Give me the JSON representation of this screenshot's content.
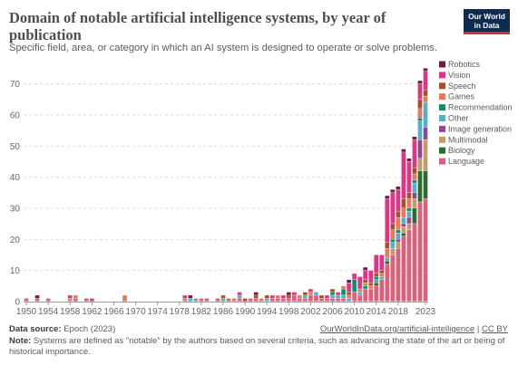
{
  "header": {
    "title": "Domain of notable artificial intelligence systems, by year of publication",
    "subtitle": "Specific field, area, or category in which an AI system is designed to operate or solve problems.",
    "logo_line1": "Our World",
    "logo_line2": "in Data"
  },
  "footer": {
    "source_label": "Data source:",
    "source_text": "Epoch (2023)",
    "url": "OurWorldInData.org/artificial-intelligence",
    "separator": "|",
    "license": "CC BY",
    "note_label": "Note:",
    "note_text": "Systems are defined as \"notable\" by the authors based on several criteria, such as advancing the state of the art or being of historical importance."
  },
  "chart_data": {
    "type": "bar",
    "stacked": true,
    "x_start": 1950,
    "x_end": 2023,
    "xticks": [
      1950,
      1954,
      1958,
      1962,
      1966,
      1970,
      1974,
      1978,
      1982,
      1986,
      1990,
      1994,
      1998,
      2002,
      2006,
      2010,
      2014,
      2018,
      2023
    ],
    "yticks": [
      0,
      10,
      20,
      30,
      40,
      50,
      60,
      70
    ],
    "ylim": [
      0,
      76
    ],
    "grid": "horizontal dashed",
    "legend_position": "right",
    "series": [
      {
        "name": "Language",
        "color": "#d6637d",
        "points": [
          [
            1950,
            1
          ],
          [
            1952,
            1
          ],
          [
            1954,
            1
          ],
          [
            1959,
            1
          ],
          [
            1961,
            1
          ],
          [
            1982,
            1
          ],
          [
            1983,
            1
          ],
          [
            1985,
            1
          ],
          [
            1987,
            1
          ],
          [
            1989,
            1
          ],
          [
            1991,
            1
          ],
          [
            1992,
            1
          ],
          [
            1995,
            1
          ],
          [
            1996,
            1
          ],
          [
            1997,
            1
          ],
          [
            1998,
            1
          ],
          [
            1999,
            2
          ],
          [
            2000,
            1
          ],
          [
            2001,
            1
          ],
          [
            2002,
            2
          ],
          [
            2003,
            2
          ],
          [
            2004,
            1
          ],
          [
            2005,
            1
          ],
          [
            2006,
            1
          ],
          [
            2007,
            1
          ],
          [
            2008,
            1
          ],
          [
            2010,
            3
          ],
          [
            2011,
            2
          ],
          [
            2012,
            4
          ],
          [
            2013,
            4
          ],
          [
            2014,
            5
          ],
          [
            2015,
            7
          ],
          [
            2016,
            12
          ],
          [
            2017,
            15
          ],
          [
            2018,
            17
          ],
          [
            2019,
            21
          ],
          [
            2020,
            23
          ],
          [
            2021,
            25
          ],
          [
            2022,
            32
          ],
          [
            2023,
            33
          ]
        ]
      },
      {
        "name": "Biology",
        "color": "#2f6b2f",
        "points": [
          [
            2014,
            1
          ],
          [
            2016,
            1
          ],
          [
            2019,
            1
          ],
          [
            2021,
            5
          ],
          [
            2022,
            10
          ],
          [
            2023,
            9
          ]
        ]
      },
      {
        "name": "Multimodal",
        "color": "#c49a6c",
        "points": [
          [
            2017,
            2
          ],
          [
            2018,
            2
          ],
          [
            2019,
            2
          ],
          [
            2020,
            2
          ],
          [
            2021,
            3
          ],
          [
            2022,
            4
          ],
          [
            2023,
            10
          ]
        ]
      },
      {
        "name": "Image generation",
        "color": "#8c4a8c",
        "points": [
          [
            2018,
            1
          ],
          [
            2019,
            1
          ],
          [
            2020,
            2
          ],
          [
            2021,
            2
          ],
          [
            2022,
            6
          ],
          [
            2023,
            4
          ]
        ]
      },
      {
        "name": "Other",
        "color": "#58aec2",
        "points": [
          [
            1980,
            1
          ],
          [
            1981,
            1
          ],
          [
            1986,
            1
          ],
          [
            1989,
            1
          ],
          [
            1994,
            1
          ],
          [
            2001,
            1
          ],
          [
            2003,
            1
          ],
          [
            2006,
            1
          ],
          [
            2007,
            1
          ],
          [
            2008,
            1
          ],
          [
            2009,
            1
          ],
          [
            2011,
            1
          ],
          [
            2014,
            1
          ],
          [
            2015,
            1
          ],
          [
            2016,
            1
          ],
          [
            2017,
            2
          ],
          [
            2018,
            2
          ],
          [
            2019,
            2
          ],
          [
            2020,
            2
          ],
          [
            2021,
            3
          ],
          [
            2022,
            6
          ],
          [
            2023,
            8
          ]
        ]
      },
      {
        "name": "Recommendation",
        "color": "#13906a",
        "points": [
          [
            2006,
            1
          ],
          [
            2008,
            2
          ],
          [
            2010,
            4
          ],
          [
            2012,
            1
          ],
          [
            2014,
            1
          ],
          [
            2017,
            1
          ],
          [
            2018,
            1
          ],
          [
            2020,
            1
          ],
          [
            2021,
            1
          ],
          [
            2022,
            1
          ]
        ]
      },
      {
        "name": "Games",
        "color": "#e07b60",
        "points": [
          [
            1958,
            1
          ],
          [
            1959,
            1
          ],
          [
            1968,
            2
          ],
          [
            1979,
            1
          ],
          [
            1988,
            1
          ],
          [
            1993,
            1
          ],
          [
            1996,
            1
          ],
          [
            2000,
            1
          ],
          [
            2002,
            1
          ],
          [
            2008,
            1
          ],
          [
            2009,
            1
          ],
          [
            2011,
            1
          ],
          [
            2012,
            1
          ],
          [
            2013,
            1
          ],
          [
            2015,
            1
          ],
          [
            2016,
            3
          ],
          [
            2017,
            3
          ],
          [
            2018,
            4
          ],
          [
            2019,
            3
          ],
          [
            2020,
            3
          ],
          [
            2021,
            2
          ],
          [
            2022,
            3
          ],
          [
            2023,
            2
          ]
        ]
      },
      {
        "name": "Speech",
        "color": "#a0522d",
        "points": [
          [
            1986,
            1
          ],
          [
            1990,
            1
          ],
          [
            1992,
            1
          ],
          [
            1994,
            1
          ],
          [
            1998,
            1
          ],
          [
            2001,
            1
          ],
          [
            2004,
            1
          ],
          [
            2006,
            1
          ],
          [
            2009,
            1
          ],
          [
            2012,
            1
          ],
          [
            2013,
            1
          ],
          [
            2014,
            1
          ],
          [
            2015,
            1
          ],
          [
            2016,
            2
          ],
          [
            2017,
            2
          ],
          [
            2018,
            2
          ],
          [
            2019,
            3
          ],
          [
            2020,
            2
          ],
          [
            2021,
            2
          ],
          [
            2022,
            3
          ],
          [
            2023,
            2
          ]
        ]
      },
      {
        "name": "Vision",
        "color": "#d63a84",
        "points": [
          [
            1958,
            1
          ],
          [
            1962,
            1
          ],
          [
            1979,
            1
          ],
          [
            1989,
            1
          ],
          [
            1995,
            1
          ],
          [
            1997,
            1
          ],
          [
            1999,
            1
          ],
          [
            2002,
            1
          ],
          [
            2005,
            1
          ],
          [
            2007,
            1
          ],
          [
            2009,
            3
          ],
          [
            2010,
            2
          ],
          [
            2011,
            4
          ],
          [
            2012,
            3
          ],
          [
            2013,
            4
          ],
          [
            2014,
            6
          ],
          [
            2015,
            5
          ],
          [
            2016,
            14
          ],
          [
            2017,
            10
          ],
          [
            2018,
            7
          ],
          [
            2019,
            15
          ],
          [
            2020,
            10
          ],
          [
            2021,
            9
          ],
          [
            2022,
            5
          ],
          [
            2023,
            6
          ]
        ]
      },
      {
        "name": "Robotics",
        "color": "#6b1e3f",
        "points": [
          [
            1952,
            1
          ],
          [
            1980,
            1
          ],
          [
            1992,
            1
          ],
          [
            1998,
            1
          ],
          [
            2009,
            1
          ],
          [
            2012,
            1
          ],
          [
            2016,
            1
          ],
          [
            2017,
            1
          ],
          [
            2018,
            1
          ],
          [
            2019,
            1
          ],
          [
            2020,
            1
          ],
          [
            2021,
            1
          ],
          [
            2022,
            1
          ],
          [
            2023,
            1
          ]
        ]
      }
    ]
  }
}
